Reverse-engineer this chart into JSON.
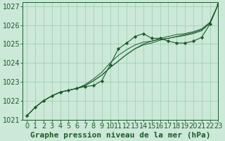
{
  "title": "Graphe pression niveau de la mer (hPa)",
  "bg_color": "#cce8d8",
  "grid_color": "#99ccb0",
  "line_color": "#1a5c2a",
  "xlim": [
    -0.5,
    23
  ],
  "ylim": [
    1021.0,
    1027.2
  ],
  "yticks": [
    1021,
    1022,
    1023,
    1024,
    1025,
    1026,
    1027
  ],
  "xticks": [
    0,
    1,
    2,
    3,
    4,
    5,
    6,
    7,
    8,
    9,
    10,
    11,
    12,
    13,
    14,
    15,
    16,
    17,
    18,
    19,
    20,
    21,
    22,
    23
  ],
  "series_marked": [
    1021.2,
    1021.65,
    1022.0,
    1022.25,
    1022.45,
    1022.55,
    1022.65,
    1022.75,
    1022.8,
    1023.05,
    1023.9,
    1024.75,
    1025.05,
    1025.4,
    1025.55,
    1025.3,
    1025.3,
    1025.15,
    1025.05,
    1025.05,
    1025.15,
    1025.35,
    1026.05,
    1027.1
  ],
  "series_smooth1": [
    1021.2,
    1021.65,
    1022.0,
    1022.25,
    1022.45,
    1022.55,
    1022.65,
    1022.8,
    1023.05,
    1023.35,
    1023.75,
    1024.1,
    1024.45,
    1024.75,
    1025.0,
    1025.15,
    1025.3,
    1025.4,
    1025.5,
    1025.55,
    1025.65,
    1025.8,
    1026.15,
    1027.1
  ],
  "series_smooth2": [
    1021.2,
    1021.65,
    1022.0,
    1022.25,
    1022.45,
    1022.55,
    1022.65,
    1022.8,
    1023.05,
    1023.35,
    1023.75,
    1024.1,
    1024.45,
    1024.75,
    1024.95,
    1025.05,
    1025.2,
    1025.3,
    1025.4,
    1025.5,
    1025.6,
    1025.75,
    1026.1,
    1027.1
  ],
  "series_smooth3": [
    1021.2,
    1021.65,
    1022.0,
    1022.25,
    1022.45,
    1022.55,
    1022.65,
    1022.85,
    1023.15,
    1023.5,
    1024.0,
    1024.4,
    1024.7,
    1024.95,
    1025.1,
    1025.15,
    1025.25,
    1025.3,
    1025.38,
    1025.45,
    1025.55,
    1025.7,
    1026.1,
    1027.1
  ],
  "tick_fontsize": 7,
  "xlabel_fontsize": 8
}
